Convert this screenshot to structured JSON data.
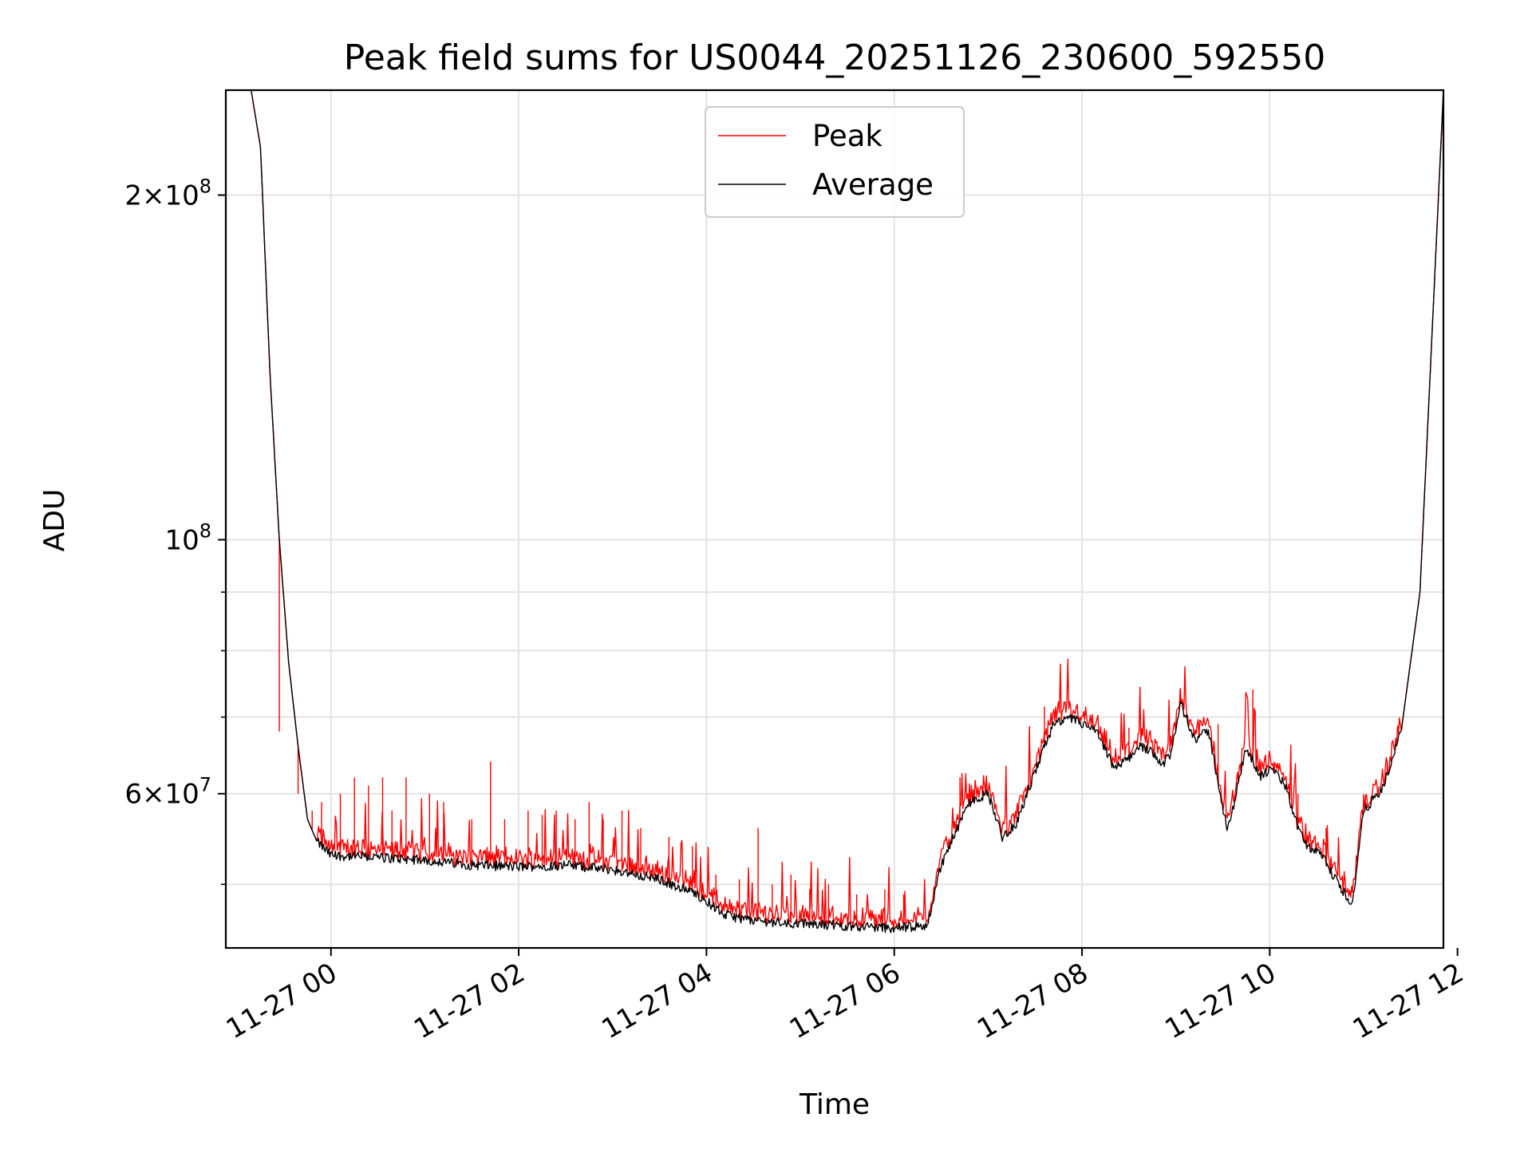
{
  "chart_data": {
    "type": "line",
    "title": "Peak field sums for US0044_20251126_230600_592550",
    "xlabel": "Time",
    "ylabel": "ADU",
    "yscale": "log",
    "xlim_hours": [
      -1.12,
      11.85
    ],
    "ylim": [
      44000000,
      247000000
    ],
    "xticks": [
      {
        "hour": 0,
        "label": "11-27 00"
      },
      {
        "hour": 2,
        "label": "11-27 02"
      },
      {
        "hour": 4,
        "label": "11-27 04"
      },
      {
        "hour": 6,
        "label": "11-27 06"
      },
      {
        "hour": 8,
        "label": "11-27 08"
      },
      {
        "hour": 10,
        "label": "11-27 10"
      },
      {
        "hour": 12,
        "label": "11-27 12"
      }
    ],
    "yticks_major": [
      {
        "value": 60000000,
        "mantissa": "6",
        "exp": "7"
      },
      {
        "value": 100000000,
        "mantissa": "",
        "exp": "8"
      },
      {
        "value": 200000000,
        "mantissa": "2",
        "exp": "8"
      }
    ],
    "yticks_minor": [
      50000000,
      70000000,
      80000000,
      90000000
    ],
    "times_label": "×",
    "times_base": "10",
    "series": [
      {
        "name": "Peak",
        "color": "#ff0000"
      },
      {
        "name": "Average",
        "color": "#000000"
      }
    ],
    "average_hours": [
      -0.85,
      -0.75,
      -0.65,
      -0.55,
      -0.45,
      -0.35,
      -0.25,
      -0.15,
      0.0,
      0.5,
      1.0,
      1.5,
      2.0,
      2.5,
      3.0,
      3.5,
      3.9,
      4.2,
      4.5,
      5.0,
      5.5,
      6.0,
      6.35,
      6.5,
      6.8,
      7.0,
      7.15,
      7.3,
      7.6,
      7.7,
      7.9,
      8.15,
      8.35,
      8.5,
      8.6,
      8.75,
      8.85,
      8.95,
      9.05,
      9.2,
      9.35,
      9.55,
      9.75,
      9.9,
      10.0,
      10.15,
      10.3,
      10.4,
      10.55,
      10.7,
      10.88,
      11.0,
      11.2,
      11.4,
      11.6,
      11.85
    ],
    "average_values": [
      247000000,
      220000000,
      140000000,
      100000000,
      78000000,
      66000000,
      57000000,
      54500000,
      53000000,
      52800000,
      52500000,
      52000000,
      51800000,
      52000000,
      51500000,
      50500000,
      49000000,
      47000000,
      46500000,
      46200000,
      46000000,
      45800000,
      46000000,
      52000000,
      59000000,
      60000000,
      55000000,
      56500000,
      66000000,
      69000000,
      69800000,
      68000000,
      63000000,
      64500000,
      66000000,
      65500000,
      63500000,
      65000000,
      72000000,
      67000000,
      68000000,
      55500000,
      66000000,
      62000000,
      63000000,
      61500000,
      56000000,
      54000000,
      53000000,
      50500000,
      48000000,
      58000000,
      60500000,
      68000000,
      90000000,
      247000000
    ],
    "peak_spike_hours": [
      -0.55,
      -0.35,
      -0.2,
      -0.1,
      0.1,
      0.25,
      0.4,
      0.55,
      0.65,
      0.8,
      1.05,
      1.2,
      1.5,
      1.7,
      1.85,
      2.1,
      2.25,
      2.4,
      2.6,
      2.75,
      2.9,
      3.1,
      3.3,
      3.6,
      3.85,
      4.1,
      4.35,
      4.55,
      4.7,
      4.9,
      5.1,
      5.3,
      5.6,
      5.9,
      6.1,
      6.7,
      7.6,
      8.5,
      9.05,
      9.45,
      9.82,
      10.05,
      10.3,
      10.6,
      11.25
    ],
    "peak_spike_values": [
      68000000,
      60000000,
      58000000,
      59000000,
      60000000,
      62000000,
      61000000,
      62000000,
      58000000,
      62000000,
      60000000,
      59000000,
      57000000,
      64000000,
      57000000,
      58000000,
      57500000,
      58000000,
      57000000,
      59000000,
      57000000,
      58000000,
      56000000,
      55000000,
      54000000,
      51000000,
      50500000,
      56000000,
      50000000,
      51000000,
      49500000,
      50000000,
      49000000,
      49500000,
      49000000,
      62000000,
      71500000,
      68500000,
      74000000,
      69000000,
      74000000,
      64000000,
      60000000,
      56000000,
      64000000
    ]
  }
}
